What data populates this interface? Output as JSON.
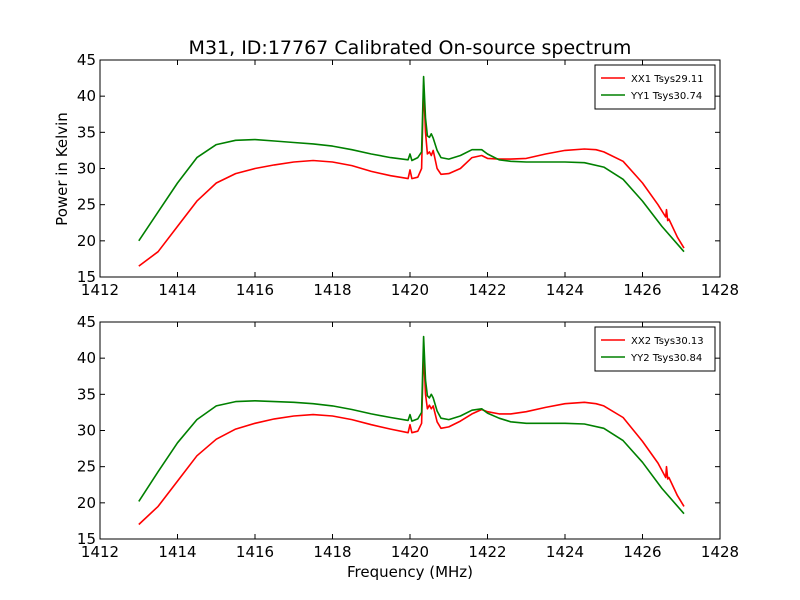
{
  "title": "M31, ID:17767 Calibrated On-source spectrum",
  "ylabel": "Power in Kelvin",
  "xlabel": "Frequency (MHz)",
  "colors": {
    "XX": "#ff0000",
    "YY": "#008000"
  },
  "chart_data": [
    {
      "type": "line",
      "title": "M31, ID:17767 Calibrated On-source spectrum",
      "xlabel": "",
      "ylabel": "Power in Kelvin",
      "xlim": [
        1412,
        1428
      ],
      "ylim": [
        15,
        45
      ],
      "xticks": [
        1412,
        1414,
        1416,
        1418,
        1420,
        1422,
        1424,
        1426,
        1428
      ],
      "yticks": [
        15,
        20,
        25,
        30,
        35,
        40,
        45
      ],
      "grid": false,
      "legend_position": "top-right",
      "series": [
        {
          "name": "XX1 Tsys29.11",
          "color": "#ff0000",
          "x": [
            1413.0,
            1413.5,
            1414.0,
            1414.5,
            1415.0,
            1415.5,
            1416.0,
            1416.5,
            1417.0,
            1417.5,
            1418.0,
            1418.5,
            1419.0,
            1419.5,
            1419.95,
            1420.0,
            1420.05,
            1420.2,
            1420.3,
            1420.35,
            1420.4,
            1420.45,
            1420.5,
            1420.55,
            1420.6,
            1420.7,
            1420.8,
            1421.0,
            1421.3,
            1421.6,
            1421.85,
            1422.0,
            1422.3,
            1422.6,
            1423.0,
            1423.5,
            1424.0,
            1424.5,
            1424.8,
            1425.0,
            1425.5,
            1426.0,
            1426.4,
            1426.6,
            1426.62,
            1426.65,
            1426.68,
            1426.9,
            1427.07
          ],
          "y": [
            16.5,
            18.5,
            22.0,
            25.5,
            28.0,
            29.3,
            30.0,
            30.5,
            30.9,
            31.1,
            30.9,
            30.4,
            29.6,
            29.0,
            28.6,
            29.8,
            28.6,
            28.8,
            30.0,
            41.5,
            35.0,
            32.0,
            32.3,
            31.8,
            32.5,
            30.0,
            29.2,
            29.3,
            30.0,
            31.5,
            31.8,
            31.4,
            31.3,
            31.3,
            31.4,
            32.0,
            32.5,
            32.7,
            32.6,
            32.3,
            31.0,
            28.0,
            25.0,
            23.3,
            24.3,
            22.8,
            23.0,
            20.5,
            19.0
          ]
        },
        {
          "name": "YY1 Tsys30.74",
          "color": "#008000",
          "x": [
            1413.0,
            1413.5,
            1414.0,
            1414.5,
            1415.0,
            1415.5,
            1416.0,
            1416.5,
            1417.0,
            1417.5,
            1418.0,
            1418.5,
            1419.0,
            1419.5,
            1419.95,
            1420.0,
            1420.05,
            1420.2,
            1420.3,
            1420.35,
            1420.4,
            1420.45,
            1420.5,
            1420.55,
            1420.6,
            1420.7,
            1420.8,
            1421.0,
            1421.3,
            1421.6,
            1421.85,
            1422.0,
            1422.3,
            1422.6,
            1423.0,
            1423.5,
            1424.0,
            1424.5,
            1425.0,
            1425.5,
            1426.0,
            1426.5,
            1427.07
          ],
          "y": [
            20.0,
            24.0,
            28.0,
            31.5,
            33.3,
            33.9,
            34.0,
            33.8,
            33.6,
            33.4,
            33.1,
            32.6,
            32.0,
            31.5,
            31.2,
            32.0,
            31.1,
            31.5,
            32.3,
            42.7,
            37.0,
            34.5,
            34.3,
            34.8,
            34.2,
            32.5,
            31.5,
            31.3,
            31.8,
            32.6,
            32.6,
            32.0,
            31.2,
            31.0,
            30.9,
            30.9,
            30.9,
            30.8,
            30.2,
            28.5,
            25.5,
            22.0,
            18.5
          ]
        }
      ]
    },
    {
      "type": "line",
      "title": "",
      "xlabel": "Frequency (MHz)",
      "ylabel": "",
      "xlim": [
        1412,
        1428
      ],
      "ylim": [
        15,
        45
      ],
      "xticks": [
        1412,
        1414,
        1416,
        1418,
        1420,
        1422,
        1424,
        1426,
        1428
      ],
      "yticks": [
        15,
        20,
        25,
        30,
        35,
        40,
        45
      ],
      "grid": false,
      "legend_position": "top-right",
      "series": [
        {
          "name": "XX2 Tsys30.13",
          "color": "#ff0000",
          "x": [
            1413.0,
            1413.5,
            1414.0,
            1414.5,
            1415.0,
            1415.5,
            1416.0,
            1416.5,
            1417.0,
            1417.5,
            1418.0,
            1418.5,
            1419.0,
            1419.5,
            1419.95,
            1420.0,
            1420.05,
            1420.2,
            1420.3,
            1420.35,
            1420.4,
            1420.45,
            1420.5,
            1420.55,
            1420.6,
            1420.7,
            1420.8,
            1421.0,
            1421.3,
            1421.6,
            1421.85,
            1422.0,
            1422.3,
            1422.6,
            1423.0,
            1423.5,
            1424.0,
            1424.5,
            1424.8,
            1425.0,
            1425.5,
            1426.0,
            1426.4,
            1426.6,
            1426.62,
            1426.65,
            1426.68,
            1426.9,
            1427.07
          ],
          "y": [
            17.0,
            19.5,
            23.0,
            26.5,
            28.8,
            30.2,
            31.0,
            31.6,
            32.0,
            32.2,
            32.0,
            31.5,
            30.8,
            30.2,
            29.7,
            30.8,
            29.7,
            29.9,
            31.0,
            41.0,
            35.0,
            33.0,
            33.5,
            33.0,
            33.4,
            31.2,
            30.3,
            30.5,
            31.3,
            32.3,
            32.9,
            32.6,
            32.3,
            32.3,
            32.6,
            33.2,
            33.7,
            33.9,
            33.7,
            33.4,
            31.8,
            28.5,
            25.5,
            23.5,
            25.0,
            23.3,
            23.5,
            21.0,
            19.5
          ]
        },
        {
          "name": "YY2 Tsys30.84",
          "color": "#008000",
          "x": [
            1413.0,
            1413.5,
            1414.0,
            1414.5,
            1415.0,
            1415.5,
            1416.0,
            1416.5,
            1417.0,
            1417.5,
            1418.0,
            1418.5,
            1419.0,
            1419.5,
            1419.95,
            1420.0,
            1420.05,
            1420.2,
            1420.3,
            1420.35,
            1420.4,
            1420.45,
            1420.5,
            1420.55,
            1420.6,
            1420.7,
            1420.8,
            1421.0,
            1421.3,
            1421.6,
            1421.85,
            1422.0,
            1422.3,
            1422.6,
            1423.0,
            1423.5,
            1424.0,
            1424.5,
            1425.0,
            1425.5,
            1426.0,
            1426.5,
            1427.07
          ],
          "y": [
            20.2,
            24.3,
            28.3,
            31.5,
            33.4,
            34.0,
            34.1,
            34.0,
            33.9,
            33.7,
            33.4,
            32.9,
            32.3,
            31.8,
            31.4,
            32.2,
            31.3,
            31.6,
            32.5,
            43.0,
            37.0,
            34.8,
            34.5,
            35.0,
            34.5,
            32.7,
            31.7,
            31.5,
            32.0,
            32.8,
            33.0,
            32.4,
            31.7,
            31.2,
            31.0,
            31.0,
            31.0,
            30.9,
            30.3,
            28.6,
            25.6,
            22.0,
            18.5
          ]
        }
      ]
    }
  ]
}
